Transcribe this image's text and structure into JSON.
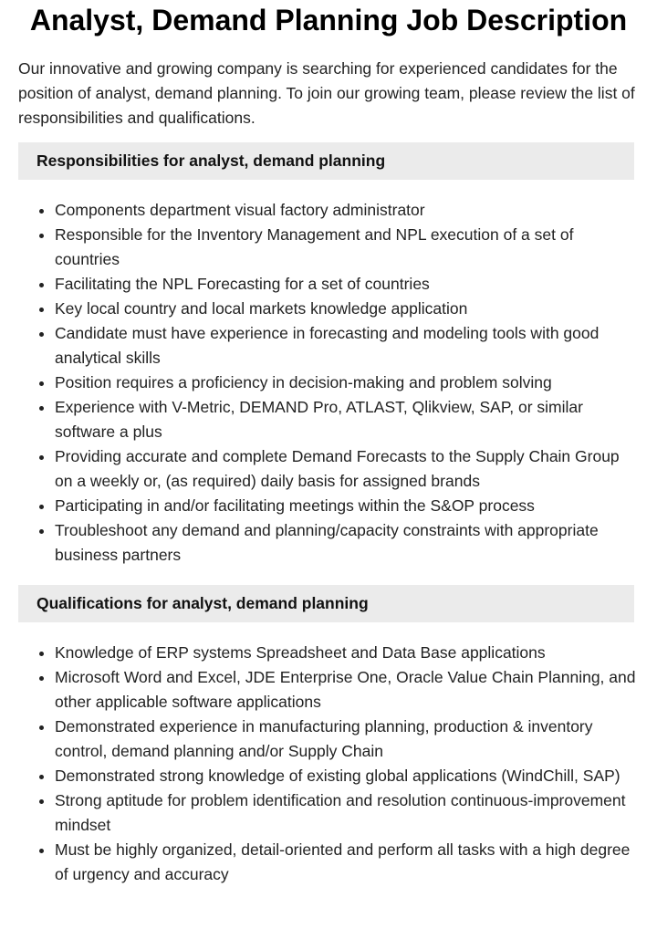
{
  "title": "Analyst, Demand Planning Job Description",
  "intro": "Our innovative and growing company is searching for experienced candidates for the position of analyst, demand planning. To join our growing team, please review the list of responsibilities and qualifications.",
  "responsibilities": {
    "heading": "Responsibilities for analyst, demand planning",
    "items": [
      "Components department visual factory administrator",
      "Responsible for the Inventory Management and NPL execution of a set of countries",
      "Facilitating the NPL Forecasting for a set of countries",
      "Key local country and local markets knowledge application",
      "Candidate must have experience in forecasting and modeling tools with good analytical skills",
      "Position requires a proficiency in decision-making and problem solving",
      "Experience with V-Metric, DEMAND Pro, ATLAST, Qlikview, SAP, or similar software a plus",
      "Providing accurate and complete Demand Forecasts to the Supply Chain Group on a weekly or, (as required) daily basis for assigned brands",
      "Participating in and/or facilitating meetings within the S&OP process",
      "Troubleshoot any demand and planning/capacity constraints with appropriate business partners"
    ]
  },
  "qualifications": {
    "heading": "Qualifications for analyst, demand planning",
    "items": [
      "Knowledge of ERP systems Spreadsheet and Data Base applications",
      "Microsoft Word and Excel, JDE Enterprise One, Oracle Value Chain Planning, and other applicable software applications",
      "Demonstrated experience in manufacturing planning, production & inventory control, demand planning and/or Supply Chain",
      "Demonstrated strong knowledge of existing global applications (WindChill, SAP)",
      "Strong aptitude for problem identification and resolution continuous-improvement mindset",
      "Must be highly organized, detail-oriented and perform all tasks with a high degree of urgency and accuracy"
    ]
  }
}
